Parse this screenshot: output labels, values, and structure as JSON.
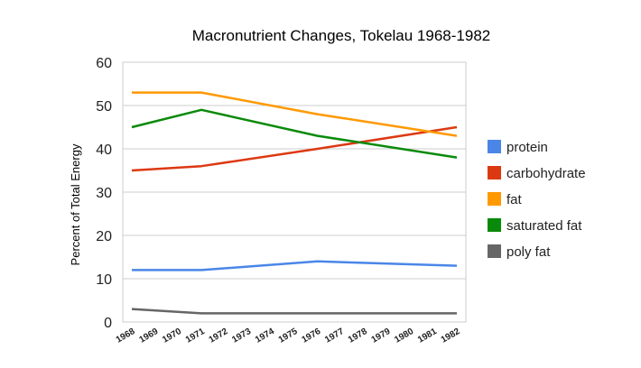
{
  "chart_data": {
    "type": "line",
    "title": "Macronutrient Changes, Tokelau 1968-1982",
    "xlabel": "",
    "ylabel": "Percent of Total Energy",
    "categories": [
      "1968",
      "1969",
      "1970",
      "1971",
      "1972",
      "1973",
      "1974",
      "1975",
      "1976",
      "1977",
      "1978",
      "1979",
      "1980",
      "1981",
      "1982"
    ],
    "ylim": [
      0,
      60
    ],
    "yticks": [
      0,
      10,
      20,
      30,
      40,
      50,
      60
    ],
    "grid": true,
    "legend_position": "right",
    "series": [
      {
        "name": "protein",
        "color": "#4a86e8",
        "points": [
          [
            "1968",
            12
          ],
          [
            "1971",
            12
          ],
          [
            "1976",
            14
          ],
          [
            "1982",
            13
          ]
        ]
      },
      {
        "name": "carbohydrate",
        "color": "#dc3912",
        "points": [
          [
            "1968",
            35
          ],
          [
            "1971",
            36
          ],
          [
            "1976",
            40
          ],
          [
            "1982",
            45
          ]
        ]
      },
      {
        "name": "fat",
        "color": "#ff9900",
        "points": [
          [
            "1968",
            53
          ],
          [
            "1971",
            53
          ],
          [
            "1976",
            48
          ],
          [
            "1982",
            43
          ]
        ]
      },
      {
        "name": "saturated fat",
        "color": "#0a8a0a",
        "points": [
          [
            "1968",
            45
          ],
          [
            "1971",
            49
          ],
          [
            "1976",
            43
          ],
          [
            "1982",
            38
          ]
        ]
      },
      {
        "name": "poly fat",
        "color": "#666666",
        "points": [
          [
            "1968",
            3
          ],
          [
            "1971",
            2
          ],
          [
            "1976",
            2
          ],
          [
            "1982",
            2
          ]
        ]
      }
    ]
  }
}
